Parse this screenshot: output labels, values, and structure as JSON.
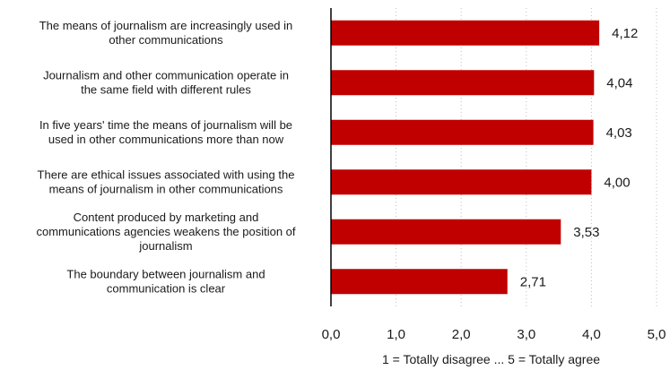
{
  "chart_data": {
    "type": "bar",
    "orientation": "horizontal",
    "categories": [
      [
        "The means of journalism are increasingly used in",
        "other communications"
      ],
      [
        "Journalism and other communication operate in",
        "the same field with different rules"
      ],
      [
        "In five years' time the means of journalism will be",
        "used in other communications more than now"
      ],
      [
        "There are ethical issues associated with using the",
        "means of journalism in other communications"
      ],
      [
        "Content produced by marketing and",
        "communications agencies weakens the position of",
        "journalism"
      ],
      [
        "The boundary between journalism and",
        "communication is clear"
      ]
    ],
    "values": [
      4.12,
      4.04,
      4.03,
      4.0,
      3.53,
      2.71
    ],
    "value_labels": [
      "4,12",
      "4,04",
      "4,03",
      "4,00",
      "3,53",
      "2,71"
    ],
    "xlim": [
      0,
      5
    ],
    "xticks": [
      0,
      1,
      2,
      3,
      4,
      5
    ],
    "xtick_labels": [
      "0,0",
      "1,0",
      "2,0",
      "3,0",
      "4,0",
      "5,0"
    ],
    "xlabel": "1 = Totally disagree ... 5 = Totally agree",
    "title": "",
    "grid": "vertical dotted",
    "bar_color": "#c00000",
    "grid_color": "#bfbfbf",
    "axis_color": "#000000"
  }
}
